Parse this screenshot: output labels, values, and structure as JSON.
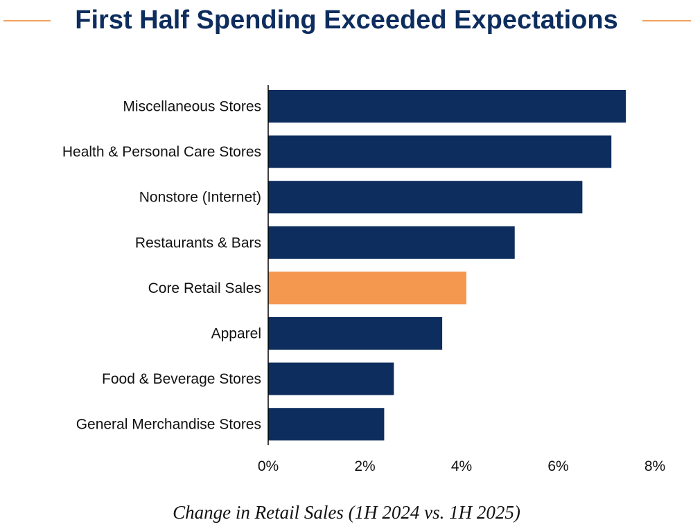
{
  "chart_data": {
    "type": "bar",
    "orientation": "horizontal",
    "title": "First Half Spending Exceeded Expectations",
    "xlabel": "Change in Retail Sales (1H 2024 vs. 1H 2025)",
    "ylabel": "",
    "xlim": [
      0,
      8
    ],
    "x_ticks": [
      0,
      2,
      4,
      6,
      8
    ],
    "x_tick_labels": [
      "0%",
      "2%",
      "4%",
      "6%",
      "8%"
    ],
    "grid": false,
    "legend": "none",
    "categories": [
      "Miscellaneous Stores",
      "Health & Personal Care Stores",
      "Nonstore (Internet)",
      "Restaurants & Bars",
      "Core Retail Sales",
      "Apparel",
      "Food & Beverage Stores",
      "General Merchandise Stores"
    ],
    "values": [
      7.4,
      7.1,
      6.5,
      5.1,
      4.1,
      3.6,
      2.6,
      2.4
    ],
    "highlight_category": "Core Retail Sales"
  },
  "colors": {
    "title": "#0d2d5e",
    "bar": "#0d2d5e",
    "highlight_bar": "#f5984f",
    "title_rule": "#f2a15f",
    "axis": "#000000"
  }
}
